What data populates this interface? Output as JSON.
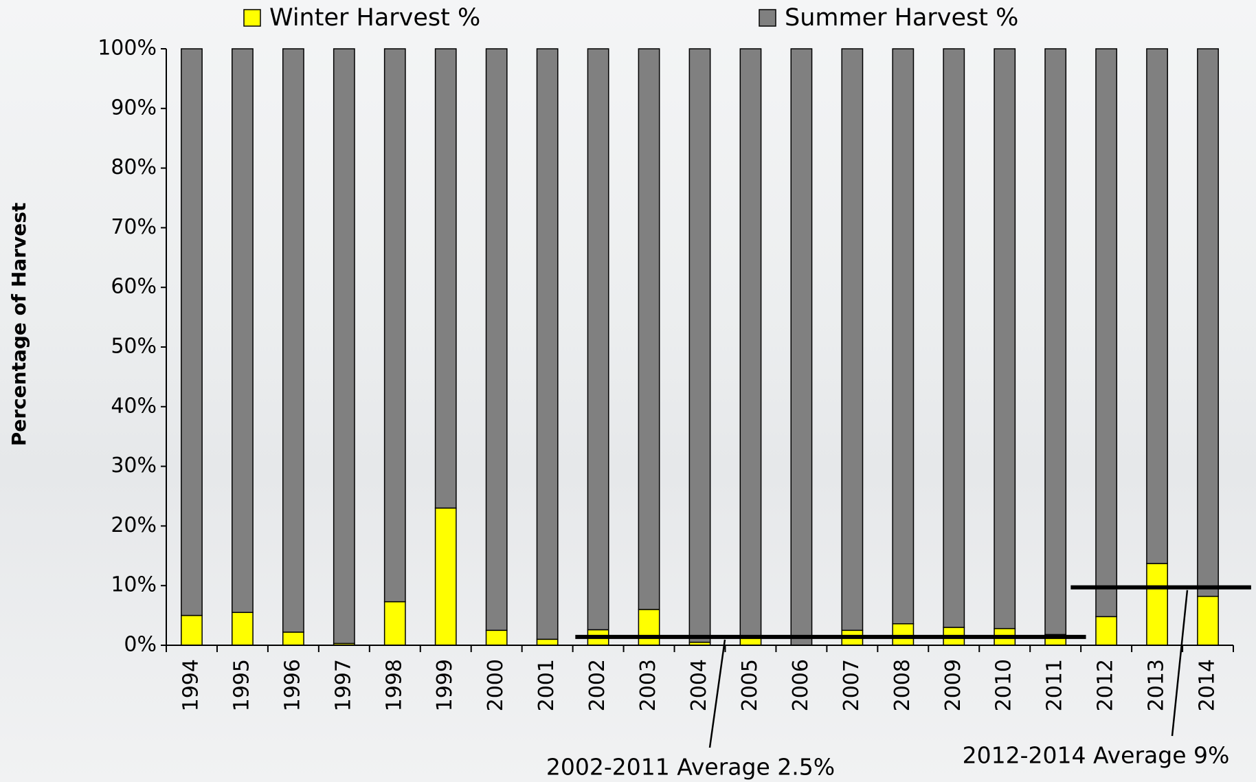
{
  "chart_data": {
    "type": "stacked-bar",
    "y_label": "Percentage of Harvest",
    "categories": [
      "1994",
      "1995",
      "1996",
      "1997",
      "1998",
      "1999",
      "2000",
      "2001",
      "2002",
      "2003",
      "2004",
      "2005",
      "2006",
      "2007",
      "2008",
      "2009",
      "2010",
      "2011",
      "2012",
      "2013",
      "2014"
    ],
    "series": [
      {
        "name": "Winter Harvest %",
        "color": "#ffff00",
        "values": [
          5,
          5.5,
          2.2,
          0.3,
          7.3,
          23,
          2.5,
          1,
          2.6,
          6,
          0.5,
          1.5,
          0,
          2.5,
          3.6,
          3,
          2.8,
          1.8,
          4.8,
          13.7,
          8.2
        ]
      },
      {
        "name": "Summer Harvest %",
        "color": "#808080",
        "values": [
          95,
          94.5,
          97.8,
          99.7,
          92.7,
          77,
          97.5,
          99,
          97.4,
          94,
          99.5,
          98.5,
          100,
          97.5,
          96.4,
          97,
          97.2,
          98.2,
          95.2,
          86.3,
          91.8
        ]
      }
    ],
    "ylim": [
      0,
      100
    ],
    "yticks": [
      {
        "value": 0,
        "label": "0%"
      },
      {
        "value": 10,
        "label": "10%"
      },
      {
        "value": 20,
        "label": "20%"
      },
      {
        "value": 30,
        "label": "30%"
      },
      {
        "value": 40,
        "label": "40%"
      },
      {
        "value": 50,
        "label": "50%"
      },
      {
        "value": 60,
        "label": "60%"
      },
      {
        "value": 70,
        "label": "70%"
      },
      {
        "value": 80,
        "label": "80%"
      },
      {
        "value": 90,
        "label": "90%"
      },
      {
        "value": 100,
        "label": "100%"
      }
    ],
    "grid": false,
    "annotations": [
      {
        "text": "2002-2011 Average 2.5%",
        "y": 1.4,
        "from": "2002",
        "to": "2011"
      },
      {
        "text": "2012-2014 Average 9%",
        "y": 9.7,
        "from": "2012",
        "to": "2014"
      }
    ]
  }
}
